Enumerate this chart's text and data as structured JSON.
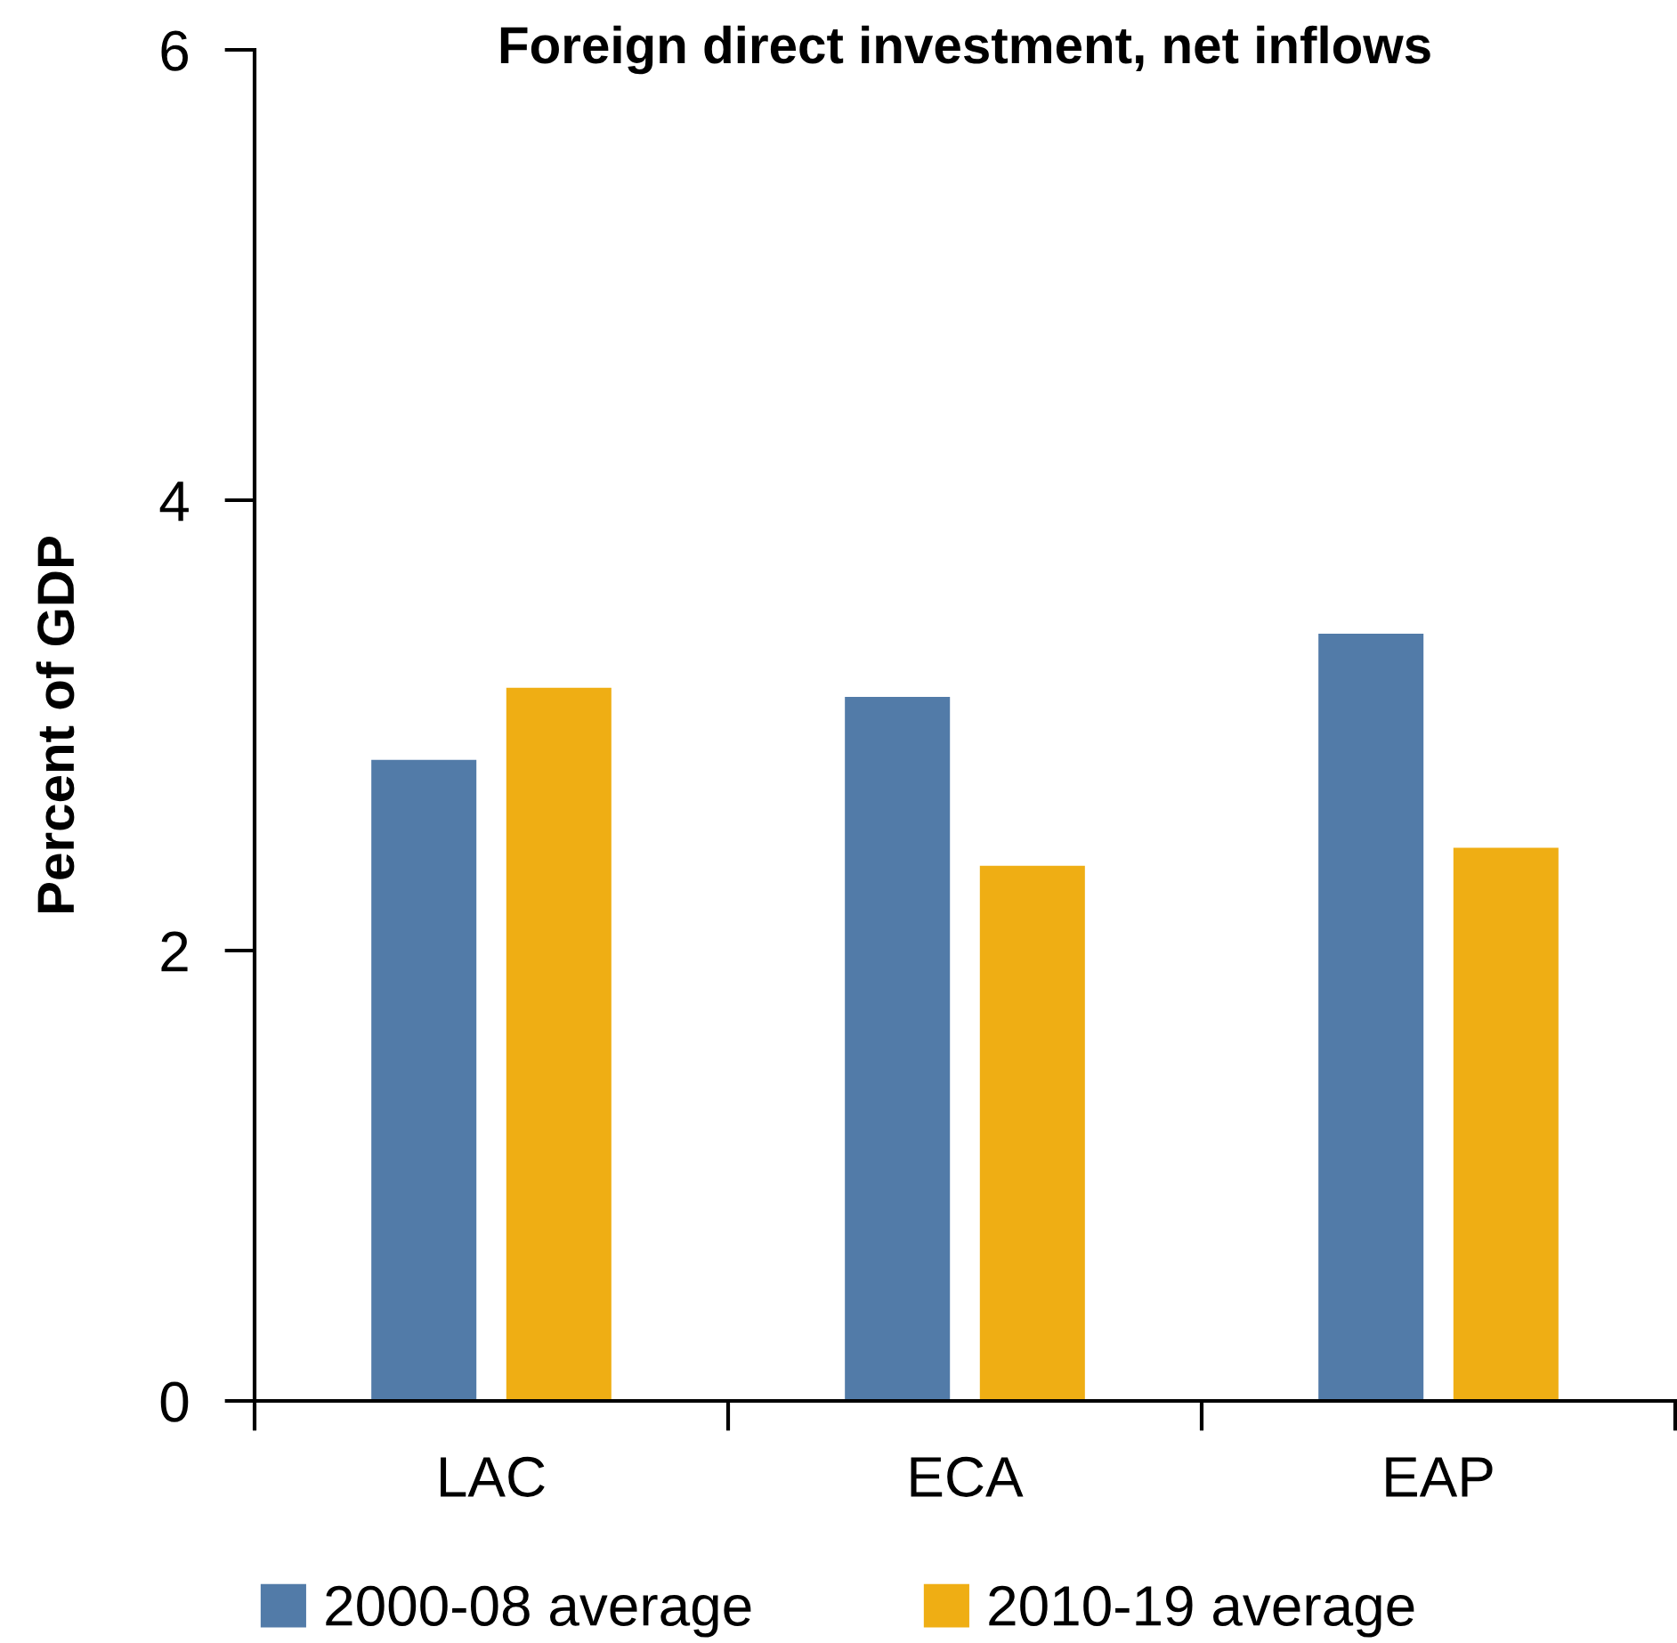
{
  "chart_data": {
    "type": "bar",
    "title": "Foreign direct investment, net inflows",
    "ylabel": "Percent of GDP",
    "categories": [
      "LAC",
      "ECA",
      "EAP"
    ],
    "series": [
      {
        "name": "2000-08 average",
        "color": "#527ba8",
        "values": [
          2.85,
          3.13,
          3.41
        ]
      },
      {
        "name": "2010-19 average",
        "color": "#efae14",
        "values": [
          3.17,
          2.38,
          2.46
        ]
      }
    ],
    "ylim": [
      0,
      6
    ],
    "yticks": [
      0,
      2,
      4,
      6
    ],
    "grid": false,
    "legend": "bottom"
  }
}
